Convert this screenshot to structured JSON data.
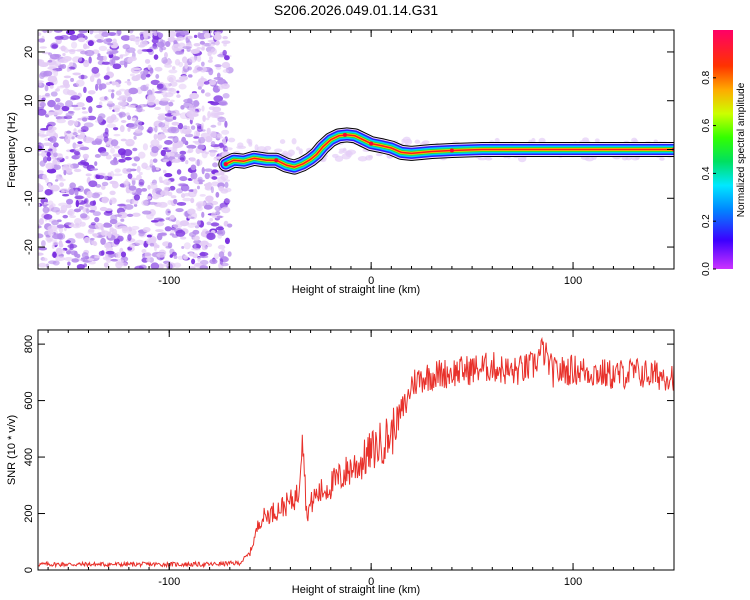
{
  "title": "S206.2026.049.01.14.G31",
  "colors": {
    "axis": "#000000",
    "snr_line": "#e8312b",
    "track_outline": "#000000",
    "noise_light": "#e4cdf6",
    "noise_mid": "#b58bec",
    "noise_dark": "#7a2fe0"
  },
  "chart_data": [
    {
      "id": "spectrogram",
      "type": "heatmap",
      "xlabel": "Height of straight line (km)",
      "ylabel": "Frequency (Hz)",
      "xlim": [
        -165,
        150
      ],
      "ylim": [
        -24.5,
        24.5
      ],
      "xticks": [
        -100,
        0,
        100
      ],
      "yticks": [
        -20,
        -10,
        0,
        10,
        20
      ],
      "xticklabels": [
        "-100",
        "0",
        "100"
      ],
      "yticklabels": [
        "-20",
        "-10",
        "0",
        "10",
        "20"
      ],
      "noise_region_x": [
        -165,
        -70
      ],
      "track": {
        "x": [
          -72,
          -68,
          -63,
          -58,
          -52,
          -47,
          -42,
          -38,
          -34,
          -30,
          -27,
          -24,
          -20,
          -16,
          -12,
          -8,
          -4,
          0,
          5,
          10,
          15,
          20,
          30,
          40,
          55,
          70,
          85,
          100,
          115,
          130,
          150
        ],
        "y": [
          -3,
          -2.2,
          -2.4,
          -1.8,
          -2.2,
          -2.2,
          -3.2,
          -3.6,
          -3,
          -2,
          -1,
          0.5,
          2,
          2.8,
          3,
          2.8,
          2,
          1.2,
          0.8,
          0.3,
          -0.6,
          -0.8,
          -0.4,
          -0.2,
          0,
          0,
          0,
          0,
          0,
          0,
          0
        ]
      },
      "series": [
        {
          "name": "spectral track peak",
          "x": [
            -72,
            -47,
            -13,
            0,
            40,
            150
          ],
          "y": [
            -3,
            -2.2,
            3,
            1.2,
            -0.2,
            0
          ]
        }
      ]
    },
    {
      "id": "colorbar",
      "type": "heatmap",
      "label": "Normalized spectral amplitude",
      "ylim": [
        0.0,
        1.0
      ],
      "ticks": [
        0.0,
        0.2,
        0.4,
        0.6,
        0.8
      ],
      "ticklabels": [
        "0.0",
        "0.2",
        "0.4",
        "0.6",
        "0.8"
      ],
      "colormap_stops": [
        "#cc33ff",
        "#3b00ff",
        "#0088ff",
        "#00e8ff",
        "#00e060",
        "#33ff00",
        "#ccff00",
        "#ffaa00",
        "#ff3300",
        "#ff0066"
      ]
    },
    {
      "id": "snr",
      "type": "line",
      "xlabel": "Height of straight line (km)",
      "ylabel": "SNR (10 * v/v)",
      "xlim": [
        -165,
        150
      ],
      "ylim": [
        0,
        850
      ],
      "xticks": [
        -100,
        0,
        100
      ],
      "yticks": [
        0,
        200,
        400,
        600,
        800
      ],
      "xticklabels": [
        "-100",
        "0",
        "100"
      ],
      "yticklabels": [
        "0",
        "200",
        "400",
        "600",
        "800"
      ],
      "series": [
        {
          "name": "SNR",
          "x": [
            -165,
            -120,
            -80,
            -65,
            -60,
            -55,
            -50,
            -45,
            -40,
            -36,
            -34,
            -32,
            -28,
            -24,
            -20,
            -15,
            -10,
            -5,
            0,
            5,
            10,
            15,
            18,
            20,
            25,
            30,
            40,
            50,
            60,
            70,
            80,
            85,
            90,
            100,
            110,
            120,
            130,
            140,
            150
          ],
          "y": [
            20,
            20,
            20,
            25,
            60,
            180,
            200,
            220,
            240,
            270,
            520,
            200,
            260,
            280,
            300,
            330,
            360,
            380,
            420,
            450,
            480,
            560,
            600,
            660,
            680,
            690,
            700,
            710,
            720,
            700,
            720,
            780,
            700,
            710,
            700,
            690,
            700,
            690,
            690
          ]
        }
      ]
    }
  ]
}
